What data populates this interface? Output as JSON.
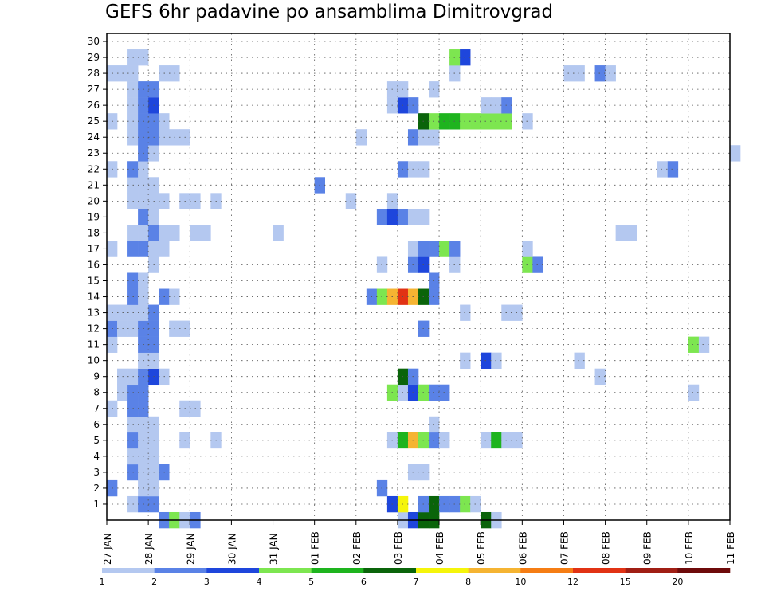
{
  "chart_data": {
    "type": "heatmap",
    "title": "GEFS 6hr padavine po ansamblima Dimitrovgrad",
    "x_tick_labels": [
      "27 JAN",
      "28 JAN",
      "29 JAN",
      "30 JAN",
      "31 JAN",
      "01 FEB",
      "02 FEB",
      "03 FEB",
      "04 FEB",
      "05 FEB",
      "06 FEB",
      "07 FEB",
      "08 FEB",
      "09 FEB",
      "10 FEB",
      "11 FEB"
    ],
    "y_tick_labels": [
      "1",
      "2",
      "3",
      "4",
      "5",
      "6",
      "7",
      "8",
      "9",
      "10",
      "11",
      "12",
      "13",
      "14",
      "15",
      "16",
      "17",
      "18",
      "19",
      "20",
      "21",
      "22",
      "23",
      "24",
      "25",
      "26",
      "27",
      "28",
      "29",
      "30"
    ],
    "xlim_days": [
      0,
      15
    ],
    "ylim_members": [
      0,
      30
    ],
    "grid": true,
    "colorbar": {
      "labels": [
        "1",
        "2",
        "3",
        "4",
        "5",
        "6",
        "7",
        "8",
        "10",
        "12",
        "15",
        "20"
      ],
      "colors": [
        "#b4c8f0",
        "#5a82e6",
        "#1e46dc",
        "#7de650",
        "#1eb41e",
        "#0a640a",
        "#f5f50a",
        "#f5b432",
        "#f57d14",
        "#e13214",
        "#a01e14",
        "#6e0a0a"
      ]
    },
    "units_note": "cells: [time step index (6h, from 27 JAN 00Z), member, color class 1..12]",
    "cells": [
      [
        5,
        0,
        2
      ],
      [
        6,
        0,
        4
      ],
      [
        7,
        0,
        1
      ],
      [
        8,
        0,
        2
      ],
      [
        28,
        0,
        1
      ],
      [
        29,
        0,
        3
      ],
      [
        30,
        0,
        6
      ],
      [
        31,
        0,
        6
      ],
      [
        36,
        0,
        6
      ],
      [
        37,
        0,
        1
      ],
      [
        2,
        1,
        1
      ],
      [
        3,
        1,
        2
      ],
      [
        4,
        1,
        2
      ],
      [
        27,
        1,
        3
      ],
      [
        28,
        1,
        7
      ],
      [
        30,
        1,
        2
      ],
      [
        31,
        1,
        6
      ],
      [
        32,
        1,
        2
      ],
      [
        33,
        1,
        2
      ],
      [
        34,
        1,
        4
      ],
      [
        35,
        1,
        1
      ],
      [
        0,
        2,
        2
      ],
      [
        3,
        2,
        1
      ],
      [
        4,
        2,
        1
      ],
      [
        26,
        2,
        2
      ],
      [
        2,
        3,
        2
      ],
      [
        3,
        3,
        1
      ],
      [
        4,
        3,
        1
      ],
      [
        5,
        3,
        2
      ],
      [
        29,
        3,
        1
      ],
      [
        30,
        3,
        1
      ],
      [
        2,
        4,
        1
      ],
      [
        3,
        4,
        1
      ],
      [
        4,
        4,
        1
      ],
      [
        2,
        5,
        2
      ],
      [
        3,
        5,
        1
      ],
      [
        4,
        5,
        1
      ],
      [
        7,
        5,
        1
      ],
      [
        10,
        5,
        1
      ],
      [
        27,
        5,
        1
      ],
      [
        28,
        5,
        5
      ],
      [
        29,
        5,
        8
      ],
      [
        30,
        5,
        4
      ],
      [
        31,
        5,
        2
      ],
      [
        32,
        5,
        1
      ],
      [
        36,
        5,
        1
      ],
      [
        37,
        5,
        5
      ],
      [
        38,
        5,
        1
      ],
      [
        39,
        5,
        1
      ],
      [
        2,
        6,
        1
      ],
      [
        3,
        6,
        1
      ],
      [
        4,
        6,
        1
      ],
      [
        31,
        6,
        1
      ],
      [
        0,
        7,
        1
      ],
      [
        2,
        7,
        2
      ],
      [
        3,
        7,
        2
      ],
      [
        7,
        7,
        1
      ],
      [
        8,
        7,
        1
      ],
      [
        1,
        8,
        1
      ],
      [
        2,
        8,
        2
      ],
      [
        3,
        8,
        2
      ],
      [
        27,
        8,
        4
      ],
      [
        28,
        8,
        1
      ],
      [
        29,
        8,
        3
      ],
      [
        30,
        8,
        4
      ],
      [
        31,
        8,
        2
      ],
      [
        32,
        8,
        2
      ],
      [
        56,
        8,
        1
      ],
      [
        1,
        9,
        1
      ],
      [
        2,
        9,
        1
      ],
      [
        3,
        9,
        2
      ],
      [
        4,
        9,
        3
      ],
      [
        5,
        9,
        1
      ],
      [
        28,
        9,
        6
      ],
      [
        29,
        9,
        2
      ],
      [
        47,
        9,
        1
      ],
      [
        3,
        10,
        1
      ],
      [
        4,
        10,
        1
      ],
      [
        34,
        10,
        1
      ],
      [
        36,
        10,
        3
      ],
      [
        37,
        10,
        1
      ],
      [
        45,
        10,
        1
      ],
      [
        0,
        11,
        1
      ],
      [
        3,
        11,
        2
      ],
      [
        4,
        11,
        2
      ],
      [
        56,
        11,
        4
      ],
      [
        57,
        11,
        1
      ],
      [
        0,
        12,
        2
      ],
      [
        1,
        12,
        1
      ],
      [
        2,
        12,
        1
      ],
      [
        3,
        12,
        2
      ],
      [
        4,
        12,
        2
      ],
      [
        6,
        12,
        1
      ],
      [
        7,
        12,
        1
      ],
      [
        30,
        12,
        2
      ],
      [
        0,
        13,
        1
      ],
      [
        1,
        13,
        1
      ],
      [
        2,
        13,
        1
      ],
      [
        3,
        13,
        1
      ],
      [
        4,
        13,
        2
      ],
      [
        34,
        13,
        1
      ],
      [
        38,
        13,
        1
      ],
      [
        39,
        13,
        1
      ],
      [
        2,
        14,
        2
      ],
      [
        3,
        14,
        1
      ],
      [
        5,
        14,
        2
      ],
      [
        6,
        14,
        1
      ],
      [
        25,
        14,
        2
      ],
      [
        26,
        14,
        4
      ],
      [
        27,
        14,
        8
      ],
      [
        28,
        14,
        10
      ],
      [
        29,
        14,
        8
      ],
      [
        30,
        14,
        6
      ],
      [
        31,
        14,
        2
      ],
      [
        2,
        15,
        2
      ],
      [
        3,
        15,
        1
      ],
      [
        31,
        15,
        2
      ],
      [
        4,
        16,
        1
      ],
      [
        26,
        16,
        1
      ],
      [
        29,
        16,
        2
      ],
      [
        30,
        16,
        3
      ],
      [
        33,
        16,
        1
      ],
      [
        40,
        16,
        4
      ],
      [
        41,
        16,
        2
      ],
      [
        0,
        17,
        1
      ],
      [
        2,
        17,
        2
      ],
      [
        3,
        17,
        2
      ],
      [
        4,
        17,
        1
      ],
      [
        5,
        17,
        1
      ],
      [
        29,
        17,
        1
      ],
      [
        30,
        17,
        2
      ],
      [
        31,
        17,
        2
      ],
      [
        32,
        17,
        4
      ],
      [
        33,
        17,
        2
      ],
      [
        40,
        17,
        1
      ],
      [
        2,
        18,
        1
      ],
      [
        3,
        18,
        1
      ],
      [
        4,
        18,
        2
      ],
      [
        5,
        18,
        1
      ],
      [
        6,
        18,
        1
      ],
      [
        8,
        18,
        1
      ],
      [
        9,
        18,
        1
      ],
      [
        16,
        18,
        1
      ],
      [
        49,
        18,
        1
      ],
      [
        50,
        18,
        1
      ],
      [
        3,
        19,
        2
      ],
      [
        4,
        19,
        1
      ],
      [
        26,
        19,
        2
      ],
      [
        27,
        19,
        3
      ],
      [
        28,
        19,
        2
      ],
      [
        29,
        19,
        1
      ],
      [
        30,
        19,
        1
      ],
      [
        2,
        20,
        1
      ],
      [
        3,
        20,
        1
      ],
      [
        4,
        20,
        1
      ],
      [
        5,
        20,
        1
      ],
      [
        7,
        20,
        1
      ],
      [
        8,
        20,
        1
      ],
      [
        10,
        20,
        1
      ],
      [
        23,
        20,
        1
      ],
      [
        27,
        20,
        1
      ],
      [
        2,
        21,
        1
      ],
      [
        3,
        21,
        1
      ],
      [
        4,
        21,
        1
      ],
      [
        20,
        21,
        2
      ],
      [
        0,
        22,
        1
      ],
      [
        2,
        22,
        2
      ],
      [
        3,
        22,
        1
      ],
      [
        28,
        22,
        2
      ],
      [
        29,
        22,
        1
      ],
      [
        30,
        22,
        1
      ],
      [
        53,
        22,
        1
      ],
      [
        54,
        22,
        2
      ],
      [
        3,
        23,
        2
      ],
      [
        4,
        23,
        1
      ],
      [
        60,
        23,
        1
      ],
      [
        2,
        24,
        1
      ],
      [
        3,
        24,
        2
      ],
      [
        4,
        24,
        2
      ],
      [
        5,
        24,
        1
      ],
      [
        6,
        24,
        1
      ],
      [
        7,
        24,
        1
      ],
      [
        24,
        24,
        1
      ],
      [
        29,
        24,
        2
      ],
      [
        30,
        24,
        1
      ],
      [
        31,
        24,
        1
      ],
      [
        0,
        25,
        1
      ],
      [
        2,
        25,
        1
      ],
      [
        3,
        25,
        2
      ],
      [
        4,
        25,
        2
      ],
      [
        5,
        25,
        1
      ],
      [
        30,
        25,
        6
      ],
      [
        31,
        25,
        4
      ],
      [
        32,
        25,
        5
      ],
      [
        33,
        25,
        5
      ],
      [
        34,
        25,
        4
      ],
      [
        35,
        25,
        4
      ],
      [
        36,
        25,
        4
      ],
      [
        37,
        25,
        4
      ],
      [
        38,
        25,
        4
      ],
      [
        40,
        25,
        1
      ],
      [
        2,
        26,
        1
      ],
      [
        3,
        26,
        2
      ],
      [
        4,
        26,
        3
      ],
      [
        27,
        26,
        1
      ],
      [
        28,
        26,
        3
      ],
      [
        29,
        26,
        2
      ],
      [
        36,
        26,
        1
      ],
      [
        37,
        26,
        1
      ],
      [
        38,
        26,
        2
      ],
      [
        2,
        27,
        1
      ],
      [
        3,
        27,
        2
      ],
      [
        4,
        27,
        2
      ],
      [
        27,
        27,
        1
      ],
      [
        28,
        27,
        1
      ],
      [
        31,
        27,
        1
      ],
      [
        0,
        28,
        1
      ],
      [
        1,
        28,
        1
      ],
      [
        2,
        28,
        1
      ],
      [
        5,
        28,
        1
      ],
      [
        6,
        28,
        1
      ],
      [
        33,
        28,
        1
      ],
      [
        44,
        28,
        1
      ],
      [
        45,
        28,
        1
      ],
      [
        47,
        28,
        2
      ],
      [
        48,
        28,
        1
      ],
      [
        2,
        29,
        1
      ],
      [
        3,
        29,
        1
      ],
      [
        33,
        29,
        4
      ],
      [
        34,
        29,
        3
      ]
    ]
  }
}
